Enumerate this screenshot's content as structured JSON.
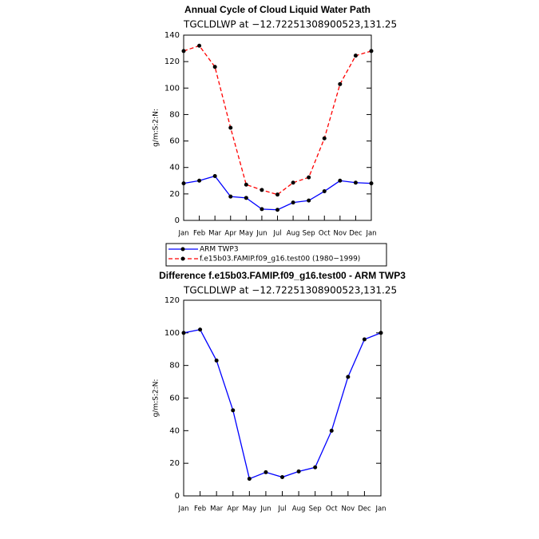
{
  "chart_data": [
    {
      "type": "line",
      "title": "Annual Cycle of Cloud Liquid Water Path",
      "subtitle": "TGCLDLWP at −12.72251308900523,131.25",
      "y_label": "g/m:S:2:N:",
      "categories": [
        "Jan",
        "Feb",
        "Mar",
        "Apr",
        "May",
        "Jun",
        "Jul",
        "Aug",
        "Sep",
        "Oct",
        "Nov",
        "Dec",
        "Jan"
      ],
      "series": [
        {
          "name": "ARM TWP3",
          "color": "#0000ff",
          "dash": false,
          "values": [
            28,
            30,
            33.5,
            18,
            17,
            8.5,
            8,
            13.5,
            15,
            22,
            30,
            28.5,
            28
          ]
        },
        {
          "name": "f.e15b03.FAMIP.f09_g16.test00 (1980−1999)",
          "color": "#ff0000",
          "dash": true,
          "values": [
            128,
            132,
            116,
            70,
            27,
            23,
            19.5,
            28.5,
            32.5,
            62,
            103,
            124.5,
            128
          ]
        }
      ],
      "marker_color": "#000000",
      "ylim": [
        0,
        140
      ],
      "yticks": [
        0,
        20,
        40,
        60,
        80,
        100,
        120,
        140
      ],
      "legend": "bottom"
    },
    {
      "type": "line",
      "title": "Difference f.e15b03.FAMIP.f09_g16.test00 - ARM TWP3",
      "subtitle": "TGCLDLWP at −12.72251308900523,131.25",
      "y_label": "g/m:S:2:N:",
      "categories": [
        "Jan",
        "Feb",
        "Mar",
        "Apr",
        "May",
        "Jun",
        "Jul",
        "Aug",
        "Sep",
        "Oct",
        "Nov",
        "Dec",
        "Jan"
      ],
      "series": [
        {
          "color": "#0000ff",
          "dash": false,
          "values": [
            100,
            102,
            83,
            52.5,
            10.5,
            14.5,
            11.5,
            15,
            17.5,
            40,
            73,
            96,
            100
          ]
        }
      ],
      "marker_color": "#000000",
      "ylim": [
        0,
        120
      ],
      "yticks": [
        0,
        20,
        40,
        60,
        80,
        100,
        120
      ]
    }
  ]
}
